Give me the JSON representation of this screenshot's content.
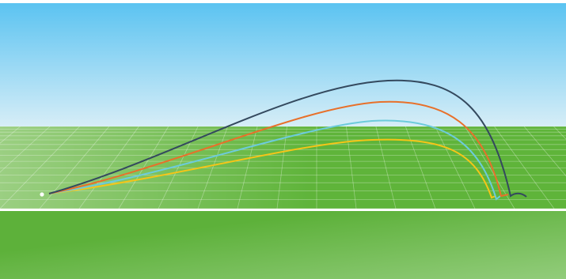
{
  "scene": {
    "type": "golf-shot-trajectory-visualization",
    "colors": {
      "sky_top": "#5BC3F1",
      "sky_bottom": "#D8EEF7",
      "grass_dark": "#5FB43A",
      "grass_light": "#9BCF82",
      "foreground_light": "#92CC7B",
      "foreground_dark": "#5DB13A",
      "grid_line": "#FFFFFF",
      "divider_line": "#FFFFFF",
      "ball": "#FFFFFF"
    },
    "trajectories": [
      {
        "id": "shot-1",
        "color": "#34495E",
        "apex": "highest"
      },
      {
        "id": "shot-2",
        "color": "#E8702A",
        "apex": "high"
      },
      {
        "id": "shot-3",
        "color": "#6CCBDB",
        "apex": "medium"
      },
      {
        "id": "shot-4",
        "color": "#F5C518",
        "apex": "low"
      }
    ]
  }
}
